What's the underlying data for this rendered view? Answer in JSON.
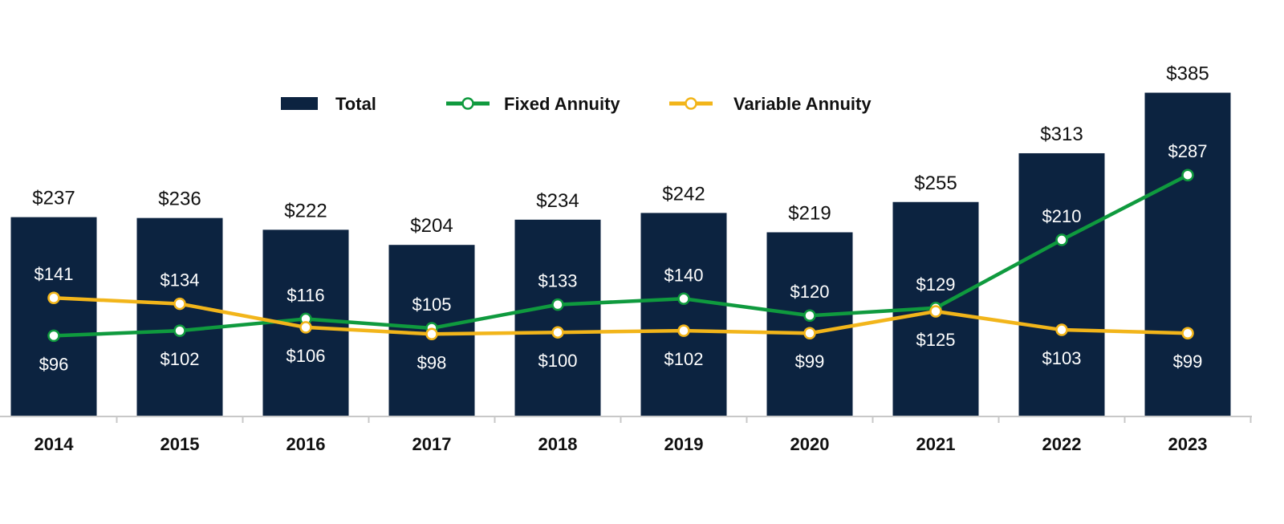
{
  "chart_data": {
    "type": "bar",
    "title": "",
    "xlabel": "",
    "ylabel": "",
    "ylim": [
      0,
      400
    ],
    "categories": [
      "2014",
      "2015",
      "2016",
      "2017",
      "2018",
      "2019",
      "2020",
      "2021",
      "2022",
      "2023"
    ],
    "series": [
      {
        "name": "Total",
        "type": "bar",
        "color": "#0c2340",
        "values": [
          237,
          236,
          222,
          204,
          234,
          242,
          219,
          255,
          313,
          385
        ],
        "labels": [
          "$237",
          "$236",
          "$222",
          "$204",
          "$234",
          "$242",
          "$219",
          "$255",
          "$313",
          "$385"
        ]
      },
      {
        "name": "Fixed Annuity",
        "type": "line",
        "color": "#0f9a3e",
        "values": [
          96,
          102,
          116,
          105,
          133,
          140,
          120,
          129,
          210,
          287
        ],
        "labels": [
          "$96",
          "$102",
          "$116",
          "$105",
          "$133",
          "$140",
          "$120",
          "$129",
          "$210",
          "$287"
        ]
      },
      {
        "name": "Variable Annuity",
        "type": "line",
        "color": "#f2b51a",
        "values": [
          141,
          134,
          106,
          98,
          100,
          102,
          99,
          125,
          103,
          99
        ],
        "labels": [
          "$141",
          "$134",
          "$106",
          "$98",
          "$100",
          "$102",
          "$99",
          "$125",
          "$103",
          "$99"
        ]
      }
    ],
    "legend": {
      "position": "top-center",
      "entries": [
        "Total",
        "Fixed Annuity",
        "Variable Annuity"
      ]
    },
    "grid": false
  }
}
